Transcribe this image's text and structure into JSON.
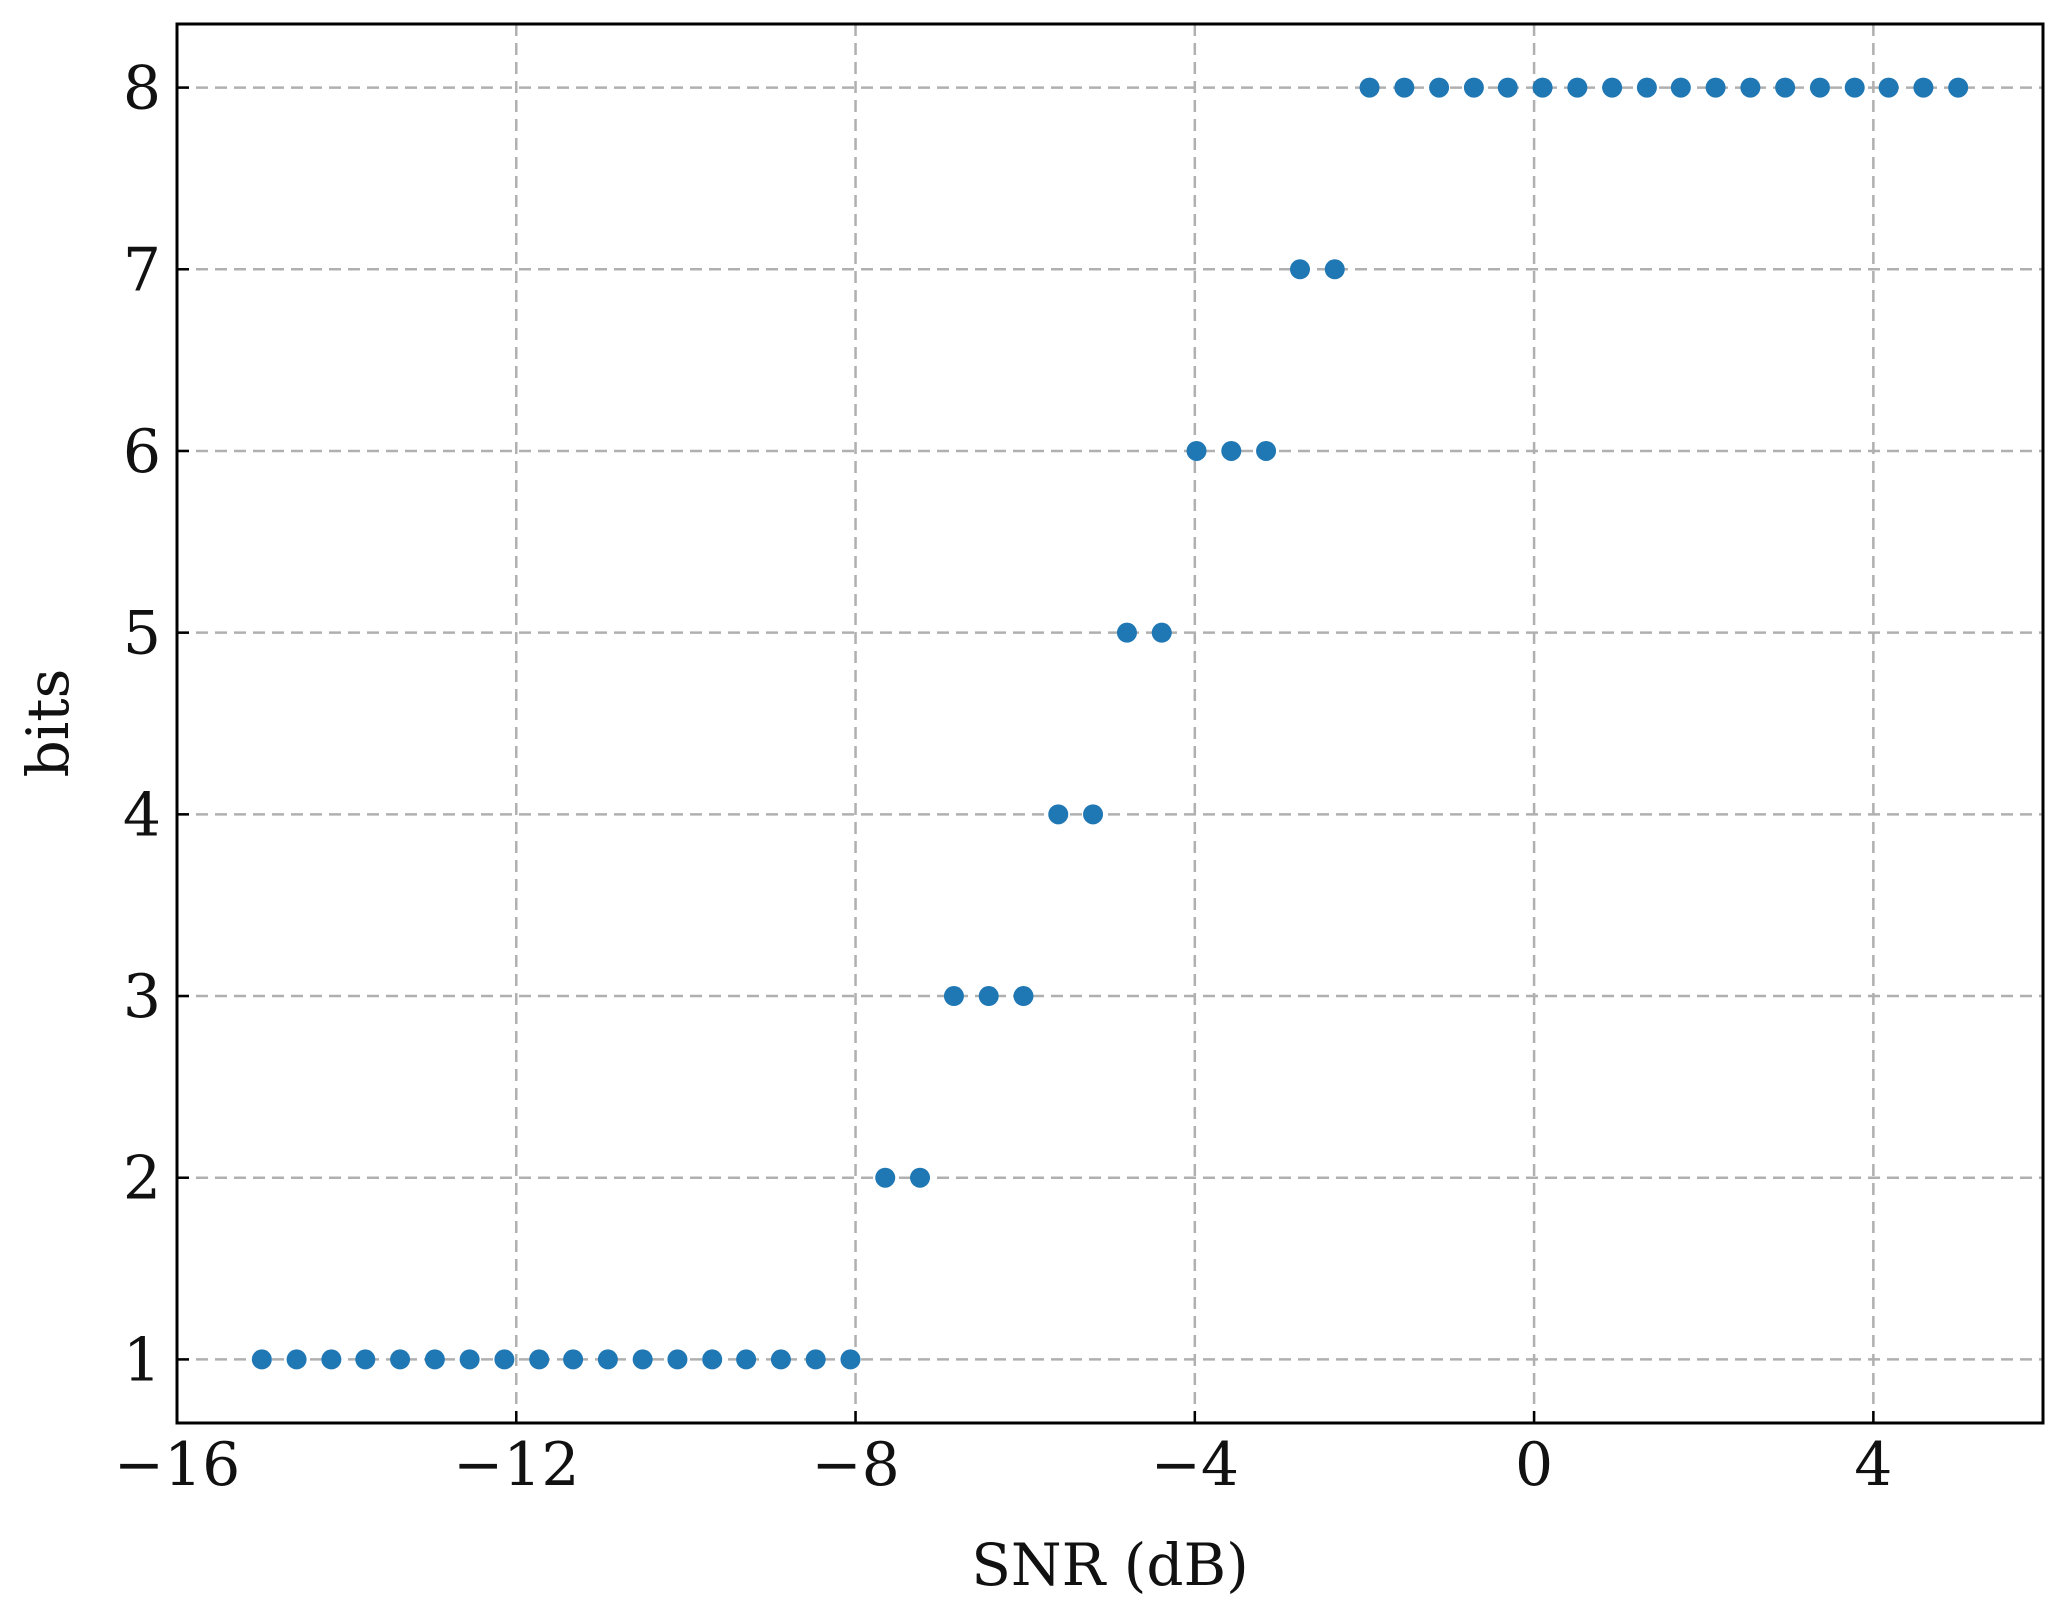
{
  "chart_data": {
    "type": "scatter",
    "x_label": "SNR (dB)",
    "y_label": "bits",
    "series": [
      {
        "color": "#1f77b4",
        "x": [
          -15,
          -14.59,
          -14.18,
          -13.78,
          -13.37,
          -12.96,
          -12.55,
          -12.14,
          -11.73,
          -11.33,
          -10.92,
          -10.51,
          -10.1,
          -9.69,
          -9.29,
          -8.88,
          -8.47,
          -8.06,
          -7.65,
          -7.24,
          -6.84,
          -6.43,
          -6.02,
          -5.61,
          -5.2,
          -4.8,
          -4.39,
          -3.98,
          -3.57,
          -3.16,
          -2.76,
          -2.35,
          -1.94,
          -1.53,
          -1.12,
          -0.71,
          -0.31,
          0.1,
          0.51,
          0.92,
          1.33,
          1.73,
          2.14,
          2.55,
          2.96,
          3.37,
          3.78,
          4.18,
          4.59,
          5
        ],
        "values": [
          1,
          1,
          1,
          1,
          1,
          1,
          1,
          1,
          1,
          1,
          1,
          1,
          1,
          1,
          1,
          1,
          1,
          1,
          2,
          2,
          3,
          3,
          3,
          4,
          4,
          5,
          5,
          6,
          6,
          6,
          7,
          7,
          8,
          8,
          8,
          8,
          8,
          8,
          8,
          8,
          8,
          8,
          8,
          8,
          8,
          8,
          8,
          8,
          8,
          8
        ]
      }
    ],
    "xlim": [
      -16,
      6
    ],
    "xticks": [
      {
        "value": -16,
        "label": "−16"
      },
      {
        "value": -12,
        "label": "−12"
      },
      {
        "value": -8,
        "label": "−8"
      },
      {
        "value": -4,
        "label": "−4"
      },
      0,
      4
    ],
    "ylim": [
      0.65,
      8.35
    ],
    "yticks": [
      1,
      2,
      3,
      4,
      5,
      6,
      7,
      8
    ],
    "grid": true
  }
}
